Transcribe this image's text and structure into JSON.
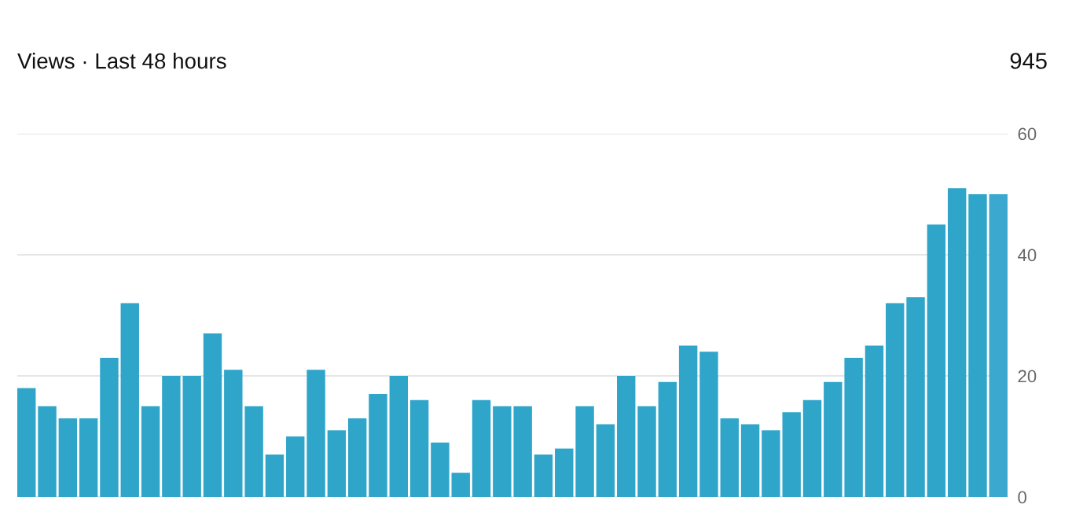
{
  "chart_data": {
    "type": "bar",
    "title": "Views · Last 48 hours",
    "annotations": [
      "945"
    ],
    "categories": [
      null,
      null,
      null,
      null,
      null,
      null,
      null,
      null,
      null,
      null,
      null,
      null,
      null,
      null,
      null,
      null,
      null,
      null,
      null,
      null,
      null,
      null,
      null,
      null,
      null,
      null,
      null,
      null,
      null,
      null,
      null,
      null,
      null,
      null,
      null,
      null,
      null,
      null,
      null,
      null,
      null,
      null,
      null,
      null,
      null,
      null,
      null,
      null
    ],
    "values": [
      18,
      15,
      13,
      13,
      23,
      32,
      15,
      20,
      20,
      27,
      21,
      15,
      7,
      10,
      21,
      11,
      13,
      17,
      20,
      16,
      9,
      4,
      16,
      15,
      15,
      7,
      8,
      15,
      12,
      20,
      15,
      19,
      25,
      24,
      13,
      12,
      11,
      14,
      16,
      19,
      23,
      25,
      32,
      33,
      45,
      51,
      50,
      50
    ],
    "colors": [
      "#2fa5ca",
      "#2fa5ca",
      "#2fa5ca",
      "#2fa5ca",
      "#2fa5ca",
      "#2fa5ca",
      "#2fa5ca",
      "#2fa5ca",
      "#2fa5ca",
      "#2fa5ca",
      "#2fa5ca",
      "#2fa5ca",
      "#2fa5ca",
      "#2fa5ca",
      "#2fa5ca",
      "#2fa5ca",
      "#2fa5ca",
      "#2fa5ca",
      "#2fa5ca",
      "#2fa5ca",
      "#2fa5ca",
      "#2fa5ca",
      "#2fa5ca",
      "#2fa5ca",
      "#2fa5ca",
      "#2fa5ca",
      "#2fa5ca",
      "#2fa5ca",
      "#2fa5ca",
      "#2fa5ca",
      "#2fa5ca",
      "#2fa5ca",
      "#2fa5ca",
      "#2fa5ca",
      "#2fa5ca",
      "#2fa5ca",
      "#2fa5ca",
      "#2fa5ca",
      "#2fa5ca",
      "#2fa5ca",
      "#2fa5ca",
      "#2fa5ca",
      "#2fa5ca",
      "#2fa5ca",
      "#2fa5ca",
      "#2fa5ca",
      "#2fa5ca",
      "#3ba9cf"
    ],
    "ylim": [
      0,
      60
    ],
    "yticks": [
      0,
      20,
      40,
      60
    ],
    "grid": "y",
    "tick_labels": "y"
  }
}
